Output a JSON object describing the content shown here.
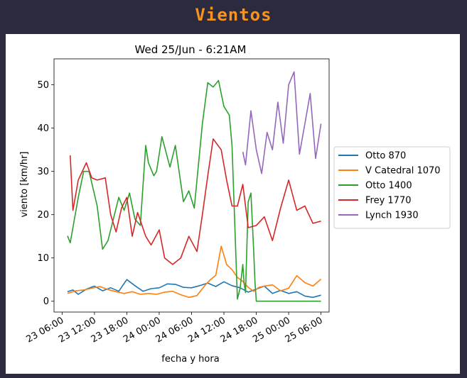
{
  "header": {
    "title": "Vientos"
  },
  "chart_data": {
    "type": "line",
    "title": "Wed 25/Jun - 6:21AM",
    "xlabel": "fecha y hora",
    "ylabel": "viento [km/hr]",
    "x_unit": "datetime",
    "xlim": [
      "2025-06-23 04:30",
      "2025-06-25 07:30"
    ],
    "ylim": [
      -2.5,
      56
    ],
    "xticks": [
      "23 06:00",
      "23 12:00",
      "23 18:00",
      "24 00:00",
      "24 06:00",
      "24 12:00",
      "24 18:00",
      "25 00:00",
      "25 06:00"
    ],
    "yticks": [
      0,
      10,
      20,
      30,
      40,
      50
    ],
    "grid": false,
    "legend_position": "center-right outside",
    "series": [
      {
        "name": "Otto 870",
        "color": "#1f77b4",
        "x": [
          "2025-06-23 07:00",
          "2025-06-23 08:00",
          "2025-06-23 09:00",
          "2025-06-23 10:30",
          "2025-06-23 12:00",
          "2025-06-23 13:30",
          "2025-06-23 15:00",
          "2025-06-23 16:30",
          "2025-06-23 18:00",
          "2025-06-23 19:30",
          "2025-06-23 21:00",
          "2025-06-23 22:30",
          "2025-06-24 00:00",
          "2025-06-24 01:30",
          "2025-06-24 03:00",
          "2025-06-24 04:30",
          "2025-06-24 06:00",
          "2025-06-24 07:30",
          "2025-06-24 09:00",
          "2025-06-24 10:30",
          "2025-06-24 12:00",
          "2025-06-24 13:30",
          "2025-06-24 15:00",
          "2025-06-24 16:30",
          "2025-06-24 18:00",
          "2025-06-24 19:30",
          "2025-06-24 21:00",
          "2025-06-24 22:30",
          "2025-06-25 00:00",
          "2025-06-25 01:30",
          "2025-06-25 03:00",
          "2025-06-25 04:30",
          "2025-06-25 06:00"
        ],
        "y": [
          2.2,
          2.6,
          1.6,
          2.8,
          3.5,
          2.4,
          3.1,
          2.3,
          5.0,
          3.6,
          2.3,
          2.9,
          3.1,
          4.0,
          3.9,
          3.2,
          3.1,
          3.6,
          4.2,
          3.4,
          4.5,
          3.6,
          3.1,
          2.1,
          2.8,
          3.5,
          1.8,
          2.5,
          1.8,
          2.2,
          1.2,
          0.9,
          1.4
        ]
      },
      {
        "name": "V Catedral 1070",
        "color": "#ff7f0e",
        "x": [
          "2025-06-23 07:00",
          "2025-06-23 08:30",
          "2025-06-23 10:00",
          "2025-06-23 11:30",
          "2025-06-23 13:00",
          "2025-06-23 14:30",
          "2025-06-23 16:00",
          "2025-06-23 17:30",
          "2025-06-23 19:00",
          "2025-06-23 20:30",
          "2025-06-23 22:00",
          "2025-06-23 23:30",
          "2025-06-24 01:00",
          "2025-06-24 02:30",
          "2025-06-24 04:00",
          "2025-06-24 05:30",
          "2025-06-24 07:00",
          "2025-06-24 08:30",
          "2025-06-24 09:30",
          "2025-06-24 10:30",
          "2025-06-24 11:30",
          "2025-06-24 12:30",
          "2025-06-24 13:30",
          "2025-06-24 14:30",
          "2025-06-24 15:30",
          "2025-06-24 16:30",
          "2025-06-24 17:30",
          "2025-06-24 18:30",
          "2025-06-24 19:30",
          "2025-06-24 21:00",
          "2025-06-24 22:30",
          "2025-06-25 00:00",
          "2025-06-25 01:30",
          "2025-06-25 03:00",
          "2025-06-25 04:30",
          "2025-06-25 06:00"
        ],
        "y": [
          1.8,
          2.4,
          2.6,
          3.0,
          3.4,
          2.7,
          2.2,
          1.8,
          2.2,
          1.6,
          1.8,
          1.6,
          2.1,
          2.3,
          1.5,
          0.9,
          1.3,
          3.7,
          5.0,
          6.0,
          12.7,
          8.5,
          7.3,
          5.5,
          4.6,
          3.2,
          2.3,
          3.2,
          3.5,
          3.8,
          2.4,
          3.0,
          5.9,
          4.3,
          3.5,
          5.1
        ]
      },
      {
        "name": "Otto 1400",
        "color": "#2ca02c",
        "x": [
          "2025-06-23 07:00",
          "2025-06-23 07:30",
          "2025-06-23 09:00",
          "2025-06-23 10:00",
          "2025-06-23 11:00",
          "2025-06-23 12:30",
          "2025-06-23 13:30",
          "2025-06-23 14:30",
          "2025-06-23 15:30",
          "2025-06-23 16:30",
          "2025-06-23 17:30",
          "2025-06-23 18:30",
          "2025-06-23 19:30",
          "2025-06-23 20:30",
          "2025-06-23 21:30",
          "2025-06-23 22:00",
          "2025-06-23 23:00",
          "2025-06-23 23:30",
          "2025-06-24 00:30",
          "2025-06-24 02:00",
          "2025-06-24 03:00",
          "2025-06-24 04:30",
          "2025-06-24 05:30",
          "2025-06-24 06:30",
          "2025-06-24 08:00",
          "2025-06-24 09:00",
          "2025-06-24 10:00",
          "2025-06-24 11:00",
          "2025-06-24 12:00",
          "2025-06-24 13:00",
          "2025-06-24 13:30",
          "2025-06-24 14:30",
          "2025-06-24 15:00",
          "2025-06-24 15:30",
          "2025-06-24 15:45",
          "2025-06-24 16:00",
          "2025-06-24 16:30",
          "2025-06-24 17:00",
          "2025-06-24 17:30",
          "2025-06-24 17:45",
          "2025-06-24 18:00",
          "2025-06-24 19:00",
          "2025-06-24 21:00",
          "2025-06-25 00:00",
          "2025-06-25 03:00",
          "2025-06-25 06:00"
        ],
        "y": [
          15.1,
          13.5,
          24.0,
          30.0,
          30.0,
          22.0,
          12.0,
          14.0,
          19.0,
          24.0,
          21.0,
          25.0,
          19.0,
          17.5,
          36.0,
          32.0,
          29.0,
          30.0,
          38.0,
          31.0,
          36.0,
          23.0,
          25.5,
          21.5,
          41.0,
          50.5,
          49.5,
          51.0,
          45.0,
          43.0,
          36.0,
          0.5,
          3.0,
          8.5,
          4.0,
          2.0,
          23.0,
          25.0,
          12.0,
          4.5,
          0.0,
          0.0,
          0.0,
          0.0,
          0.0,
          0.0
        ]
      },
      {
        "name": "Frey 1770",
        "color": "#d62728",
        "x": [
          "2025-06-23 07:30",
          "2025-06-23 08:00",
          "2025-06-23 09:00",
          "2025-06-23 10:30",
          "2025-06-23 11:30",
          "2025-06-23 12:30",
          "2025-06-23 14:00",
          "2025-06-23 15:00",
          "2025-06-23 16:00",
          "2025-06-23 17:00",
          "2025-06-23 18:00",
          "2025-06-23 19:00",
          "2025-06-23 20:00",
          "2025-06-23 21:30",
          "2025-06-23 22:30",
          "2025-06-24 00:00",
          "2025-06-24 01:00",
          "2025-06-24 02:30",
          "2025-06-24 04:00",
          "2025-06-24 05:30",
          "2025-06-24 07:00",
          "2025-06-24 08:00",
          "2025-06-24 09:00",
          "2025-06-24 10:00",
          "2025-06-24 11:30",
          "2025-06-24 12:30",
          "2025-06-24 13:30",
          "2025-06-24 14:30",
          "2025-06-24 15:30",
          "2025-06-24 16:30",
          "2025-06-24 18:00",
          "2025-06-24 19:30",
          "2025-06-24 21:00",
          "2025-06-24 22:30",
          "2025-06-25 00:00",
          "2025-06-25 01:30",
          "2025-06-25 03:00",
          "2025-06-25 04:30",
          "2025-06-25 06:00"
        ],
        "y": [
          33.7,
          21.0,
          28.0,
          32.0,
          28.5,
          28.0,
          28.5,
          20.0,
          16.0,
          21.5,
          24.0,
          15.0,
          20.5,
          15.0,
          13.0,
          16.5,
          10.0,
          8.5,
          10.0,
          15.0,
          11.5,
          20.0,
          29.0,
          37.5,
          35.0,
          28.0,
          22.0,
          22.0,
          27.0,
          17.0,
          17.5,
          19.5,
          14.0,
          21.5,
          28.0,
          21.0,
          22.0,
          18.0,
          18.5
        ]
      },
      {
        "name": "Lynch 1930",
        "color": "#9467bd",
        "x": [
          "2025-06-24 15:30",
          "2025-06-24 16:00",
          "2025-06-24 17:00",
          "2025-06-24 18:00",
          "2025-06-24 19:00",
          "2025-06-24 20:00",
          "2025-06-24 21:00",
          "2025-06-24 22:00",
          "2025-06-24 23:00",
          "2025-06-25 00:00",
          "2025-06-25 01:00",
          "2025-06-25 02:00",
          "2025-06-25 03:00",
          "2025-06-25 04:00",
          "2025-06-25 05:00",
          "2025-06-25 06:00"
        ],
        "y": [
          34.5,
          31.5,
          44.0,
          35.0,
          29.5,
          39.0,
          35.0,
          46.0,
          36.5,
          50.0,
          53.0,
          34.0,
          41.0,
          48.0,
          33.0,
          41.0
        ]
      }
    ]
  }
}
